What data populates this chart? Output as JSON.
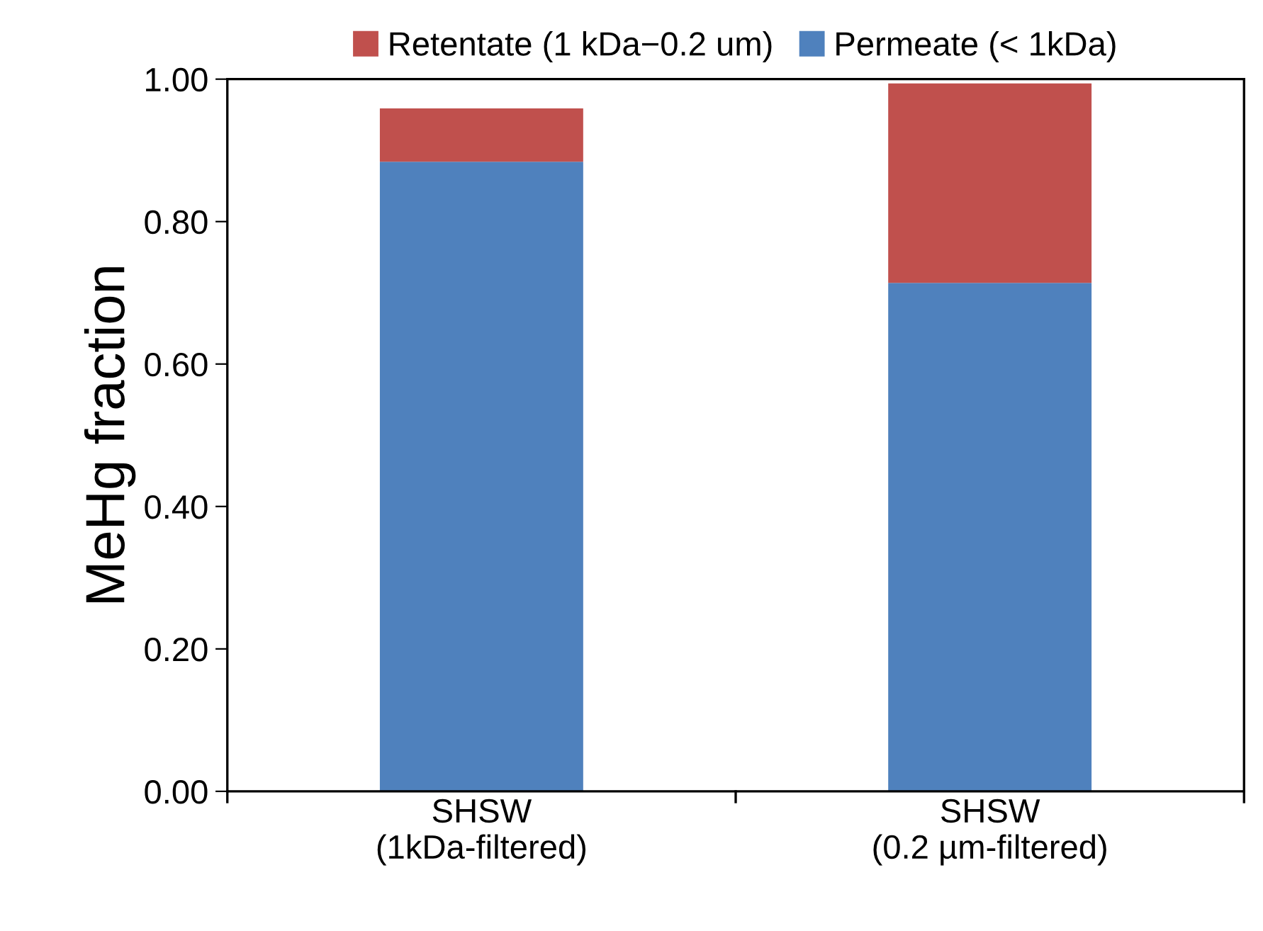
{
  "chart_data": {
    "type": "bar",
    "stacked": true,
    "ylabel": "MeHg fraction",
    "categories": [
      "SHSW\n(1kDa-filtered)",
      "SHSW\n(0.2 µm-filtered)"
    ],
    "series": [
      {
        "name": "Permeate (< 1kDa)",
        "color": "#4f81bd",
        "values": [
          0.884,
          0.714
        ]
      },
      {
        "name": "Retentate (1 kDa−0.2 um)",
        "color": "#c0504d",
        "values": [
          0.075,
          0.28
        ]
      }
    ],
    "ylim": [
      0,
      1
    ],
    "yticks": [
      {
        "value": 0,
        "label": "0.00"
      },
      {
        "value": 0.2,
        "label": "0.20"
      },
      {
        "value": 0.4,
        "label": "0.40"
      },
      {
        "value": 0.6,
        "label": "0.60"
      },
      {
        "value": 0.8,
        "label": "0.80"
      },
      {
        "value": 1,
        "label": "1.00"
      }
    ],
    "grid": false,
    "legend": "top"
  }
}
